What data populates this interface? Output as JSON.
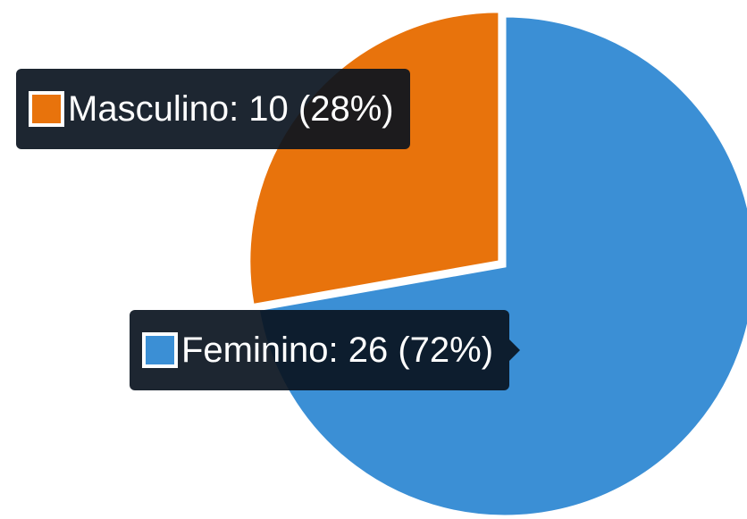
{
  "chart_data": {
    "type": "pie",
    "values": [
      10,
      26
    ],
    "value_labels": [
      "Masculino: 10 (28%)",
      "Feminino: 26 (72%)"
    ],
    "colors": [
      "#e8730c",
      "#3b8fd5"
    ]
  }
}
